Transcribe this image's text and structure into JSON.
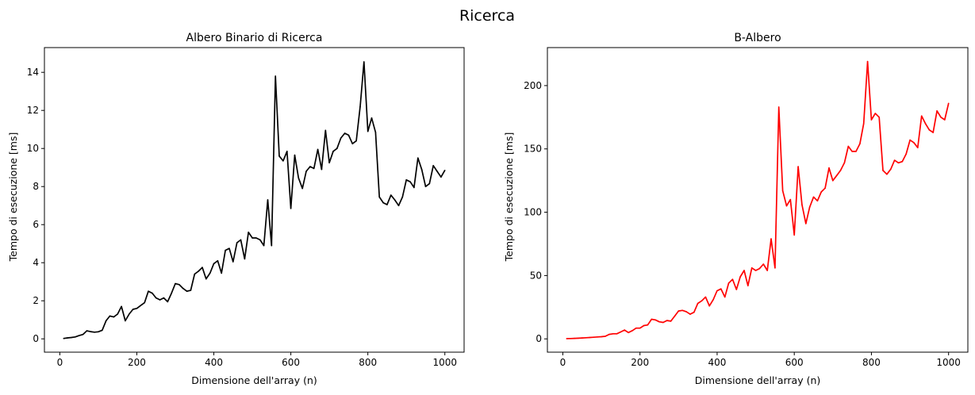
{
  "figure": {
    "suptitle": "Ricerca"
  },
  "chart_data": [
    {
      "type": "line",
      "title": "Albero Binario di Ricerca",
      "xlabel": "Dimensione dell'array (n)",
      "ylabel": "Tempo di esecuzione [ms]",
      "xlim": [
        -40,
        1050
      ],
      "ylim": [
        -0.7,
        15.3
      ],
      "xticks": [
        0,
        200,
        400,
        600,
        800,
        1000
      ],
      "yticks": [
        0,
        2,
        4,
        6,
        8,
        10,
        12,
        14
      ],
      "grid": false,
      "legend": "none",
      "series": [
        {
          "color": "#000000",
          "x": [
            10,
            20,
            30,
            40,
            50,
            60,
            70,
            80,
            90,
            100,
            110,
            120,
            130,
            140,
            150,
            160,
            170,
            180,
            190,
            200,
            210,
            220,
            230,
            240,
            250,
            260,
            270,
            280,
            290,
            300,
            310,
            320,
            330,
            340,
            350,
            360,
            370,
            380,
            390,
            400,
            410,
            420,
            430,
            440,
            450,
            460,
            470,
            480,
            490,
            500,
            510,
            520,
            530,
            540,
            550,
            560,
            570,
            580,
            590,
            600,
            610,
            620,
            630,
            640,
            650,
            660,
            670,
            680,
            690,
            700,
            710,
            720,
            730,
            740,
            750,
            760,
            770,
            780,
            790,
            800,
            810,
            820,
            830,
            840,
            850,
            860,
            870,
            880,
            890,
            900,
            910,
            920,
            930,
            940,
            950,
            960,
            970,
            980,
            990,
            1000
          ],
          "values": [
            0.02,
            0.05,
            0.07,
            0.1,
            0.17,
            0.23,
            0.42,
            0.38,
            0.35,
            0.37,
            0.45,
            0.95,
            1.2,
            1.15,
            1.3,
            1.7,
            0.95,
            1.3,
            1.55,
            1.6,
            1.75,
            1.9,
            2.5,
            2.4,
            2.15,
            2.05,
            2.15,
            1.95,
            2.4,
            2.9,
            2.85,
            2.65,
            2.5,
            2.55,
            3.4,
            3.55,
            3.75,
            3.15,
            3.45,
            3.95,
            4.1,
            3.45,
            4.65,
            4.75,
            4.05,
            5.05,
            5.2,
            4.2,
            5.6,
            5.3,
            5.3,
            5.2,
            4.9,
            7.3,
            4.9,
            13.8,
            9.6,
            9.35,
            9.85,
            6.85,
            9.65,
            8.45,
            7.9,
            8.8,
            9.05,
            8.95,
            9.95,
            8.9,
            10.95,
            9.25,
            9.85,
            10.0,
            10.55,
            10.8,
            10.7,
            10.25,
            10.4,
            12.2,
            14.55,
            10.9,
            11.6,
            10.85,
            7.45,
            7.15,
            7.05,
            7.55,
            7.3,
            7.0,
            7.45,
            8.35,
            8.25,
            7.95,
            9.5,
            8.9,
            8.0,
            8.15,
            9.1,
            8.8,
            8.5,
            8.85
          ]
        }
      ]
    },
    {
      "type": "line",
      "title": "B-Albero",
      "xlabel": "Dimensione dell'array (n)",
      "ylabel": "Tempo di esecuzione [ms]",
      "xlim": [
        -40,
        1050
      ],
      "ylim": [
        -10.5,
        230
      ],
      "xticks": [
        0,
        200,
        400,
        600,
        800,
        1000
      ],
      "yticks": [
        0,
        50,
        100,
        150,
        200
      ],
      "grid": false,
      "legend": "none",
      "series": [
        {
          "color": "#ff0000",
          "x": [
            10,
            20,
            30,
            40,
            50,
            60,
            70,
            80,
            90,
            100,
            110,
            120,
            130,
            140,
            150,
            160,
            170,
            180,
            190,
            200,
            210,
            220,
            230,
            240,
            250,
            260,
            270,
            280,
            290,
            300,
            310,
            320,
            330,
            340,
            350,
            360,
            370,
            380,
            390,
            400,
            410,
            420,
            430,
            440,
            450,
            460,
            470,
            480,
            490,
            500,
            510,
            520,
            530,
            540,
            550,
            560,
            570,
            580,
            590,
            600,
            610,
            620,
            630,
            640,
            650,
            660,
            670,
            680,
            690,
            700,
            710,
            720,
            730,
            740,
            750,
            760,
            770,
            780,
            790,
            800,
            810,
            820,
            830,
            840,
            850,
            860,
            870,
            880,
            890,
            900,
            910,
            920,
            930,
            940,
            950,
            960,
            970,
            980,
            990,
            1000
          ],
          "values": [
            0.2,
            0.3,
            0.4,
            0.5,
            0.7,
            0.9,
            1.1,
            1.3,
            1.5,
            1.7,
            2.0,
            3.5,
            4.0,
            4.0,
            5.5,
            7.0,
            5.0,
            6.5,
            8.5,
            8.5,
            10.5,
            11.0,
            15.5,
            15.0,
            13.5,
            13.0,
            14.5,
            14.0,
            18.0,
            22.0,
            22.5,
            21.5,
            19.5,
            21.0,
            28.0,
            30.0,
            33.0,
            26.0,
            31.0,
            38.0,
            39.5,
            33.0,
            44.0,
            47.0,
            39.0,
            49.0,
            54.0,
            42.0,
            56.0,
            54.0,
            55.5,
            59.0,
            54.0,
            79.0,
            56.0,
            183.0,
            117.0,
            105.0,
            110.0,
            82.0,
            136.0,
            106.0,
            91.0,
            104.0,
            112.0,
            109.0,
            116.0,
            119.0,
            135.0,
            125.0,
            129.0,
            133.0,
            139.0,
            152.0,
            148.0,
            148.0,
            154.0,
            170.0,
            219.0,
            173.0,
            178.0,
            175.0,
            133.0,
            130.0,
            134.0,
            141.0,
            139.0,
            140.0,
            146.0,
            157.0,
            155.0,
            151.0,
            176.0,
            170.0,
            165.0,
            163.0,
            180.0,
            175.0,
            173.0,
            186.0
          ]
        }
      ]
    }
  ]
}
